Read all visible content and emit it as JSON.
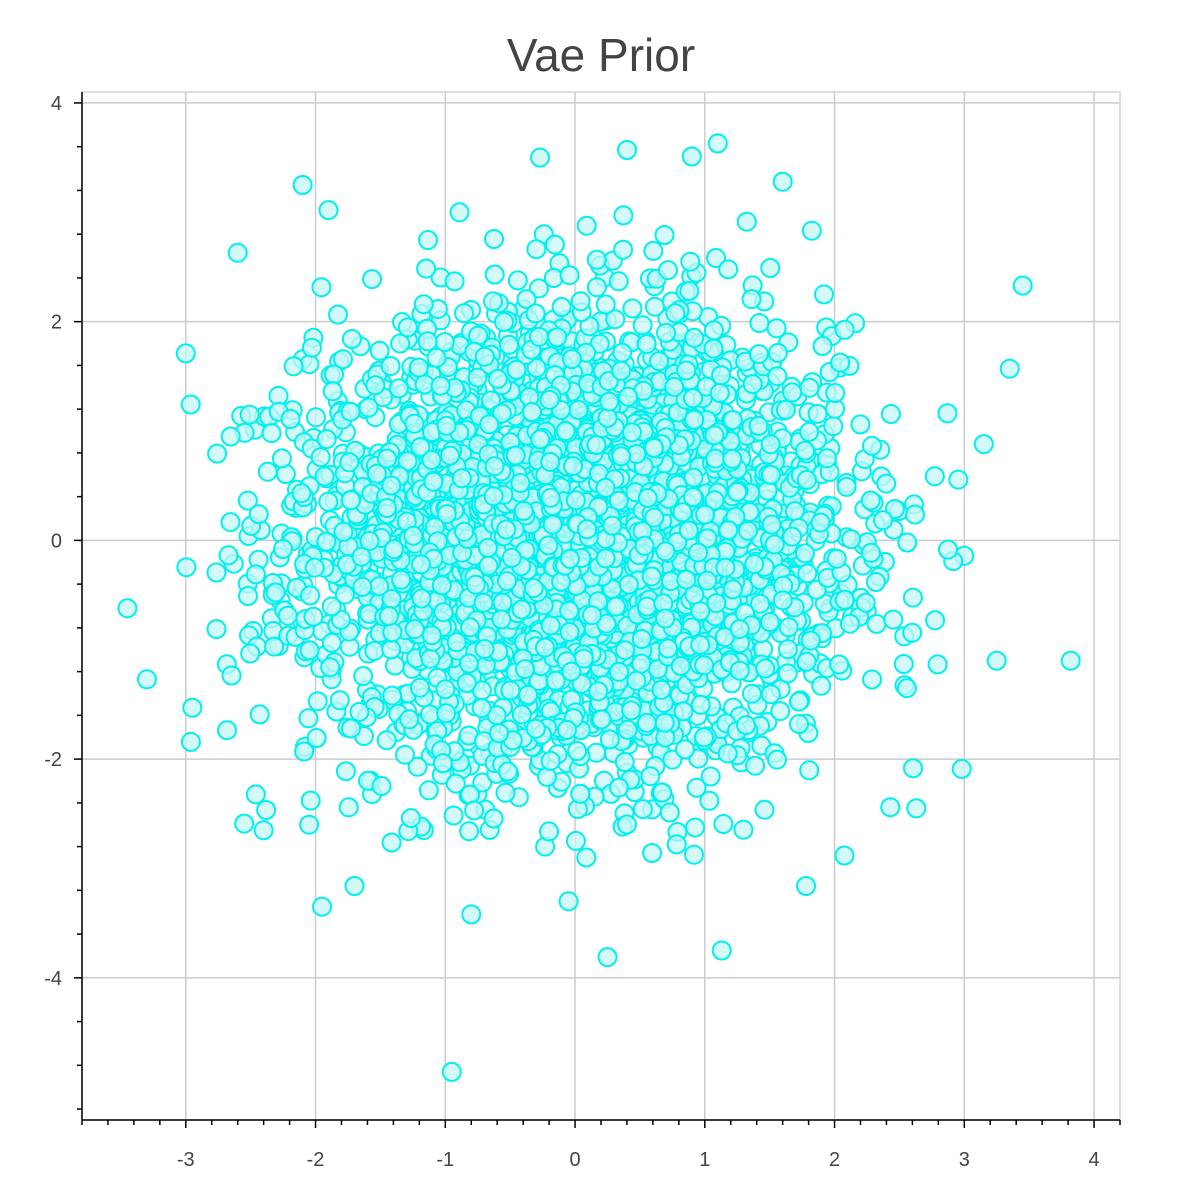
{
  "chart_data": {
    "type": "scatter",
    "title": "Vae Prior",
    "xlabel": "",
    "ylabel": "",
    "xlim": [
      -3.8,
      4.2
    ],
    "ylim": [
      -5.3,
      4.1
    ],
    "x_ticks": [
      -3,
      -2,
      -1,
      0,
      1,
      2,
      3,
      4
    ],
    "y_ticks": [
      -4,
      -2,
      0,
      2,
      4
    ],
    "grid": true,
    "marker": "circle",
    "color": "#00f0f0",
    "fill_color": "#c6f7f7",
    "n_points": 10000,
    "distribution": "approximately standard bivariate normal, mean (0, 0), std 1",
    "visible_outliers": [
      {
        "x": 0.4,
        "y": 3.57
      },
      {
        "x": 1.1,
        "y": 3.63
      },
      {
        "x": -0.27,
        "y": 3.5
      },
      {
        "x": -2.1,
        "y": 3.25
      },
      {
        "x": -1.9,
        "y": 3.02
      },
      {
        "x": 1.6,
        "y": 3.28
      },
      {
        "x": 0.9,
        "y": 3.51
      },
      {
        "x": -2.6,
        "y": 2.63
      },
      {
        "x": 3.45,
        "y": 2.33
      },
      {
        "x": -3.0,
        "y": 1.71
      },
      {
        "x": 3.35,
        "y": 1.57
      },
      {
        "x": 3.15,
        "y": 0.88
      },
      {
        "x": -3.45,
        "y": -0.62
      },
      {
        "x": -3.3,
        "y": -1.27
      },
      {
        "x": -2.95,
        "y": -1.53
      },
      {
        "x": 3.25,
        "y": -1.1
      },
      {
        "x": 3.82,
        "y": -1.1
      },
      {
        "x": 2.98,
        "y": -2.09
      },
      {
        "x": 2.43,
        "y": -2.44
      },
      {
        "x": 2.63,
        "y": -2.45
      },
      {
        "x": -2.55,
        "y": -2.59
      },
      {
        "x": -2.4,
        "y": -2.65
      },
      {
        "x": -2.05,
        "y": -2.6
      },
      {
        "x": -1.7,
        "y": -3.16
      },
      {
        "x": -1.95,
        "y": -3.35
      },
      {
        "x": -0.8,
        "y": -3.42
      },
      {
        "x": -0.05,
        "y": -3.3
      },
      {
        "x": 0.25,
        "y": -3.81
      },
      {
        "x": 1.13,
        "y": -3.75
      },
      {
        "x": 1.78,
        "y": -3.16
      },
      {
        "x": -0.95,
        "y": -4.86
      }
    ]
  }
}
